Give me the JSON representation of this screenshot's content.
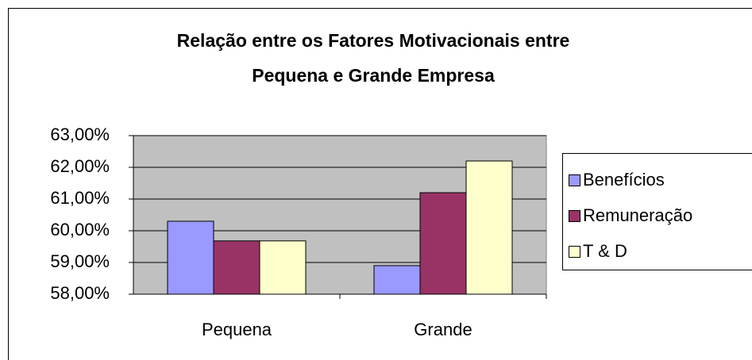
{
  "chart_data": {
    "type": "bar",
    "title": [
      "Relação entre os Fatores Motivacionais entre",
      "Pequena e Grande Empresa"
    ],
    "categories": [
      "Pequena",
      "Grande"
    ],
    "series": [
      {
        "name": "Benefícios",
        "color": "#9999ff",
        "values": [
          60.3,
          58.9
        ]
      },
      {
        "name": "Remuneração",
        "color": "#993366",
        "values": [
          59.68,
          61.2
        ]
      },
      {
        "name": "T & D",
        "color": "#ffffcc",
        "values": [
          59.68,
          62.2
        ]
      }
    ],
    "ylim": [
      58,
      63
    ],
    "yticks": [
      {
        "value": 58,
        "label": "58,00%"
      },
      {
        "value": 59,
        "label": "59,00%"
      },
      {
        "value": 60,
        "label": "60,00%"
      },
      {
        "value": 61,
        "label": "61,00%"
      },
      {
        "value": 62,
        "label": "62,00%"
      },
      {
        "value": 63,
        "label": "63,00%"
      }
    ],
    "grid": true,
    "plot_background": "#c0c0c0",
    "legend": "right"
  }
}
